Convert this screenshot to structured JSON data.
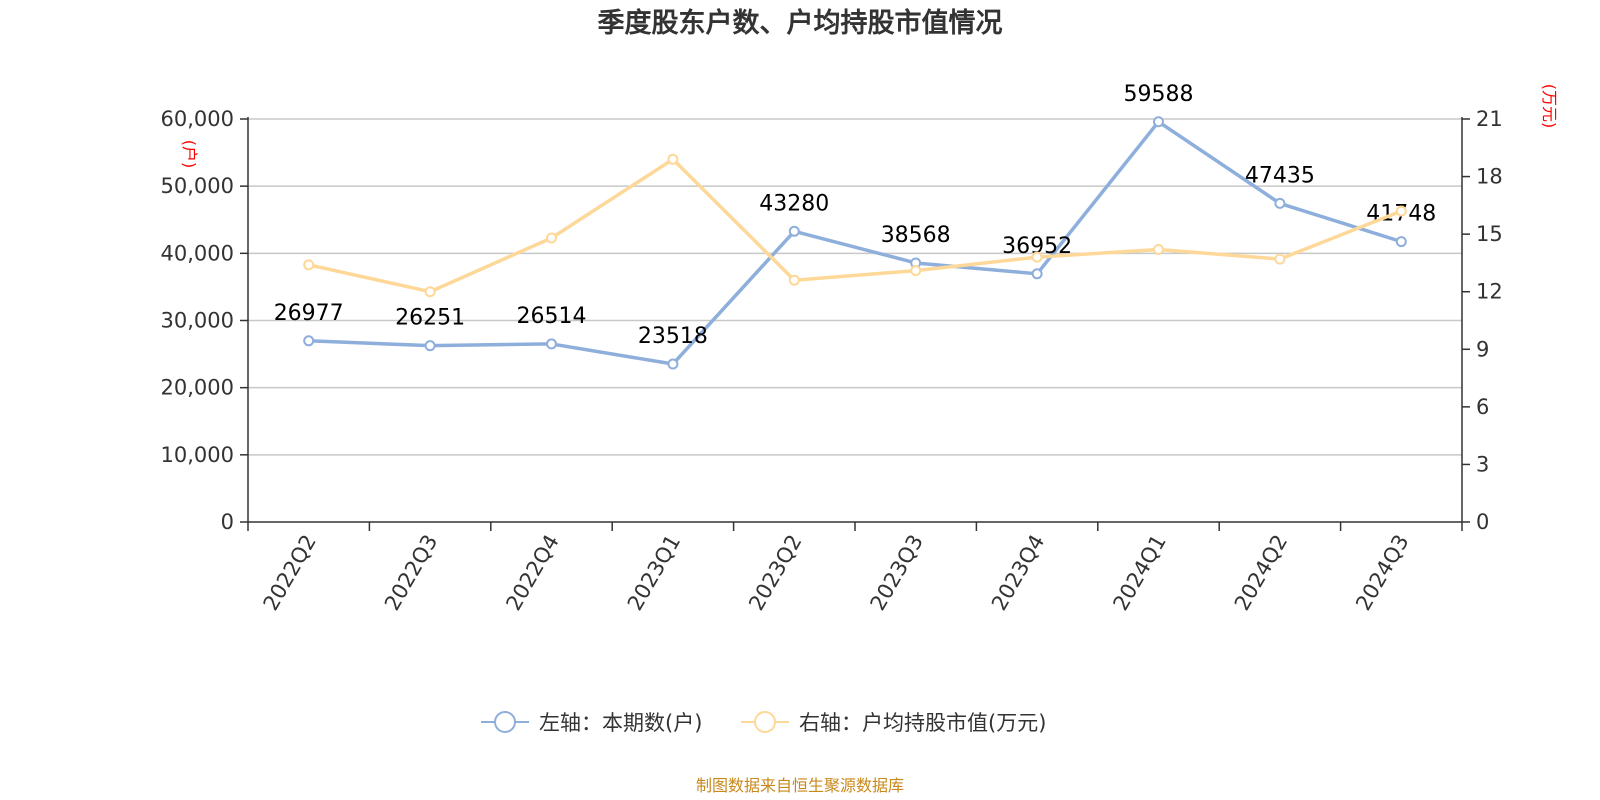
{
  "chart_data": {
    "type": "line",
    "title": "季度股东户数、户均持股市值情况",
    "categories": [
      "2022Q2",
      "2022Q3",
      "2022Q4",
      "2023Q1",
      "2023Q2",
      "2023Q3",
      "2023Q4",
      "2024Q1",
      "2024Q2",
      "2024Q3"
    ],
    "left_axis": {
      "unit": "(户)",
      "ylim": [
        0,
        60000
      ],
      "ticks": [
        "0",
        "10,000",
        "20,000",
        "30,000",
        "40,000",
        "50,000",
        "60,000"
      ]
    },
    "right_axis": {
      "unit": "(万元)",
      "ylim": [
        0,
        21
      ],
      "ticks": [
        "0",
        "3",
        "6",
        "9",
        "12",
        "15",
        "18",
        "21"
      ]
    },
    "series": [
      {
        "name": "左轴：本期数(户)",
        "axis": "left",
        "color": "#8eaedb",
        "values": [
          26977,
          26251,
          26514,
          23518,
          43280,
          38568,
          36952,
          59588,
          47435,
          41748
        ],
        "labels": [
          "26977",
          "26251",
          "26514",
          "23518",
          "43280",
          "38568",
          "36952",
          "59588",
          "47435",
          "41748"
        ]
      },
      {
        "name": "右轴：户均持股市值(万元)",
        "axis": "right",
        "color": "#fdd898",
        "values": [
          13.4,
          12.0,
          14.8,
          18.9,
          12.6,
          13.1,
          13.8,
          14.2,
          13.7,
          16.2
        ]
      }
    ],
    "grid": true,
    "legend_position": "bottom",
    "source": "制图数据来自恒生聚源数据库"
  }
}
